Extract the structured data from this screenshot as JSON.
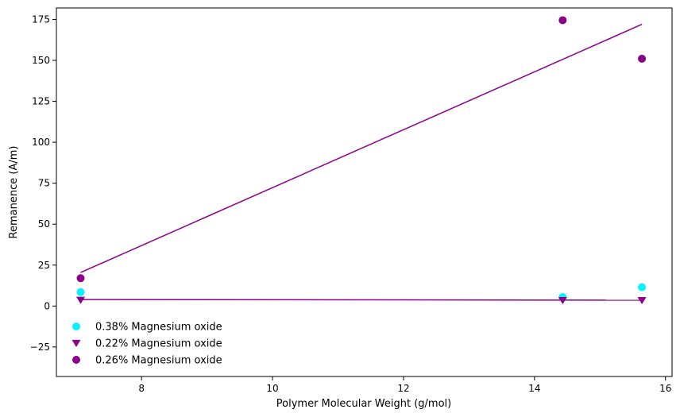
{
  "chart_data": {
    "type": "scatter",
    "title": "",
    "xlabel": "Polymer Molecular Weight (g/mol)",
    "ylabel": "Remanence (A/m)",
    "xlim": [
      6.7,
      16.1
    ],
    "ylim": [
      -43,
      182
    ],
    "xticks": [
      8,
      10,
      12,
      14,
      16
    ],
    "yticks": [
      -25,
      0,
      25,
      50,
      75,
      100,
      125,
      150,
      175
    ],
    "legend_position": "lower-left",
    "series": [
      {
        "name": "0.38% Magnesium oxide",
        "marker": "circle",
        "color": "#00f5ff",
        "x": [
          7.07,
          14.43,
          15.64
        ],
        "y": [
          8.5,
          5.5,
          11.5
        ]
      },
      {
        "name": "0.22% Magnesium oxide",
        "marker": "triangle-down",
        "color": "#8b008b",
        "x": [
          7.07,
          14.43,
          15.64
        ],
        "y": [
          3.7,
          3.5,
          3.5
        ],
        "trendline": {
          "x": [
            7.07,
            15.64
          ],
          "y": [
            4.0,
            3.6
          ]
        }
      },
      {
        "name": "0.26% Magnesium oxide",
        "marker": "circle",
        "color": "#8b008b",
        "x": [
          7.07,
          14.43,
          15.64
        ],
        "y": [
          17,
          174.5,
          151
        ],
        "trendline": {
          "x": [
            7.07,
            15.64
          ],
          "y": [
            20.5,
            172
          ]
        }
      }
    ]
  }
}
